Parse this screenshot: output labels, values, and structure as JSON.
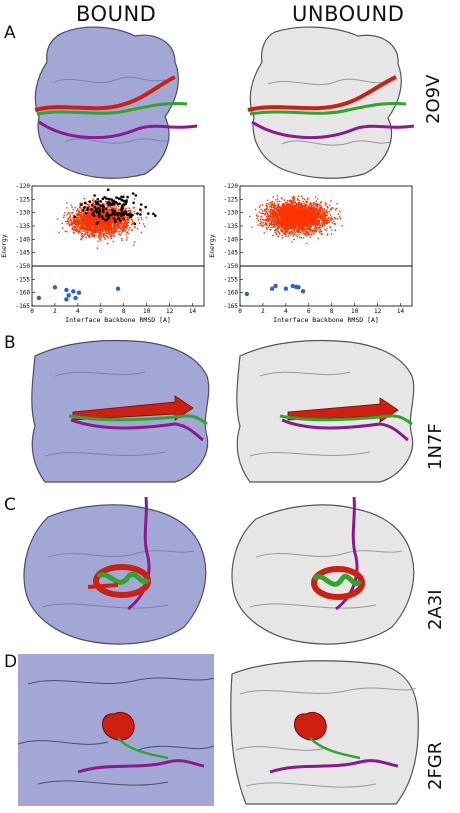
{
  "figure": {
    "column_headers": [
      "BOUND",
      "UNBOUND"
    ],
    "panel_labels": [
      "A",
      "B",
      "C",
      "D"
    ],
    "pdb_ids": [
      "2O9V",
      "1N7F",
      "2A3I",
      "2FGR"
    ]
  },
  "colors": {
    "bound_surface": "#a3a7d6",
    "unbound_surface": "#e6e6e6",
    "red": "#cf1f13",
    "green": "#2fa52c",
    "purple": "#8a1a8f",
    "blue_points": "#2a5fd6",
    "scatter": "#ff3300"
  },
  "chart_data": [
    {
      "type": "scatter",
      "panel": "bound",
      "xlabel": "Interface Backbone RMSD [A]",
      "ylabel": "Energy",
      "xlim": [
        0,
        15
      ],
      "ylim": [
        -165,
        -120
      ],
      "xticks": [
        0,
        2,
        4,
        6,
        8,
        10,
        12,
        14
      ],
      "yticks": [
        -120,
        -125,
        -130,
        -135,
        -140,
        -145,
        -150,
        -155,
        -160,
        -165
      ],
      "threshold_line": -150,
      "blue_points": [
        [
          0.6,
          -162
        ],
        [
          2.0,
          -158
        ],
        [
          3.0,
          -159
        ],
        [
          3.2,
          -161
        ],
        [
          3.6,
          -159.5
        ],
        [
          4.1,
          -160
        ],
        [
          7.5,
          -158.5
        ],
        [
          3.0,
          -162.5
        ],
        [
          3.8,
          -162
        ]
      ],
      "series": [
        {
          "color": "red",
          "count": 2200,
          "x_center": 6,
          "y_center": -131
        },
        {
          "color": "black",
          "count": 140,
          "x_center": 7,
          "y_center": -127
        }
      ]
    },
    {
      "type": "scatter",
      "panel": "unbound",
      "xlabel": "Interface Backbone RMSD [A]",
      "ylabel": "Energy",
      "xlim": [
        0,
        15
      ],
      "ylim": [
        -165,
        -120
      ],
      "xticks": [
        0,
        2,
        4,
        6,
        8,
        10,
        12,
        14
      ],
      "yticks": [
        -120,
        -125,
        -130,
        -135,
        -140,
        -145,
        -150,
        -155,
        -160,
        -165
      ],
      "threshold_line": -150,
      "blue_points": [
        [
          0.6,
          -160.5
        ],
        [
          2.8,
          -158.5
        ],
        [
          3.1,
          -157.5
        ],
        [
          4.0,
          -158.5
        ],
        [
          4.6,
          -157.5
        ],
        [
          5.1,
          -158
        ],
        [
          5.5,
          -159.5
        ],
        [
          4.9,
          -157.8
        ]
      ],
      "series": [
        {
          "color": "red",
          "count": 2600,
          "x_center": 5,
          "y_center": -130
        }
      ]
    }
  ]
}
